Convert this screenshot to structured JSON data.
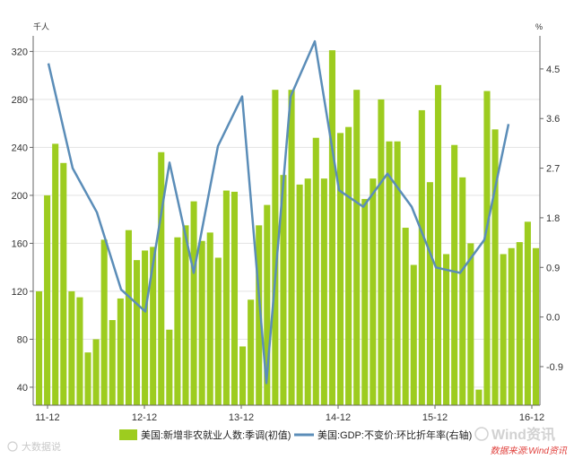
{
  "chart_data": {
    "type": "bar",
    "left_axis_unit": "千人",
    "right_axis_unit": "%",
    "x_ticks": [
      "11-12",
      "12-12",
      "13-12",
      "14-12",
      "15-12",
      "16-12"
    ],
    "y_left": {
      "ticks": [
        40,
        80,
        120,
        160,
        200,
        240,
        280,
        320
      ],
      "range": [
        25,
        333
      ]
    },
    "y_right": {
      "ticks": [
        "4.5",
        "3.6",
        "2.7",
        "1.8",
        "0.9",
        "0.0",
        "-0.9"
      ],
      "range": [
        -1.6,
        5.1
      ]
    },
    "series": [
      {
        "name": "美国:新增非农就业人数:季调(初值)",
        "type": "bar",
        "axis": "left",
        "color": "#9dcc1f",
        "values": [
          120,
          200,
          243,
          227,
          120,
          115,
          69,
          80,
          163,
          96,
          114,
          171,
          146,
          154,
          157,
          236,
          88,
          165,
          175,
          195,
          162,
          169,
          148,
          204,
          203,
          74,
          113,
          175,
          192,
          288,
          217,
          288,
          209,
          214,
          248,
          214,
          321,
          252,
          257,
          288,
          197,
          214,
          280,
          245,
          245,
          173,
          142,
          271,
          211,
          292,
          151,
          242,
          215,
          160,
          38,
          287,
          255,
          151,
          156,
          161,
          178,
          156
        ]
      },
      {
        "name": "美国:GDP:不变价:环比折年率(右轴)",
        "type": "line",
        "axis": "right",
        "color": "#5b8db8",
        "values": [
          4.6,
          2.7,
          1.9,
          0.5,
          0.1,
          2.8,
          0.8,
          3.1,
          4.0,
          -1.2,
          4.0,
          5.0,
          2.3,
          2.0,
          2.6,
          2.0,
          0.9,
          0.8,
          1.4,
          3.5
        ]
      }
    ]
  },
  "legend": {
    "bar_label": "美国:新增非农就业人数:季调(初值)",
    "line_label": "美国:GDP:不变价:环比折年率(右轴)"
  },
  "watermark": "大数据说",
  "brand": "Wind资讯",
  "source": "数据来源:Wind资讯"
}
